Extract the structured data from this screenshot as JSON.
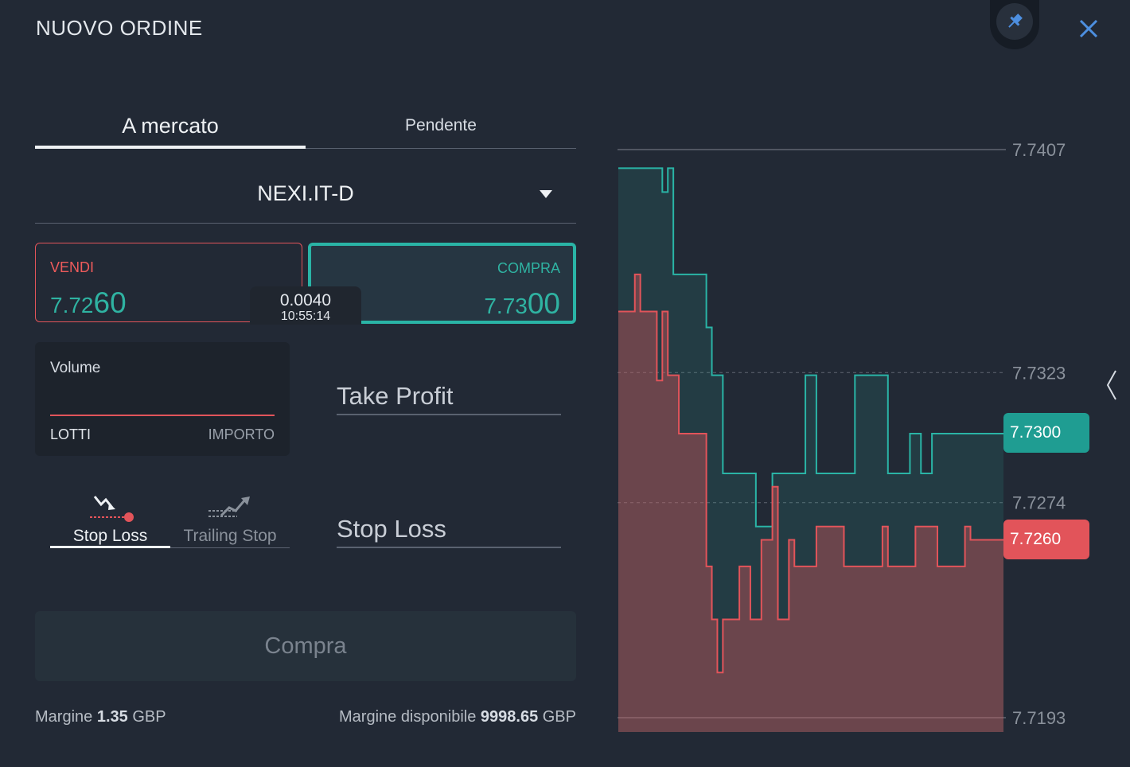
{
  "header": {
    "title": "NUOVO ORDINE",
    "pin_icon": "pin-icon",
    "close_icon": "close-icon"
  },
  "tabs": {
    "market": "A mercato",
    "pending": "Pendente"
  },
  "symbol": {
    "name": "NEXI.IT-D"
  },
  "sell": {
    "label": "VENDI",
    "price_small": "7.72",
    "price_big": "60"
  },
  "buy": {
    "label": "COMPRA",
    "price_small": "7.73",
    "price_big": "00"
  },
  "spread": {
    "value": "0.0040",
    "time": "10:55:14"
  },
  "volume": {
    "label": "Volume",
    "lotti": "LOTTI",
    "importo": "IMPORTO"
  },
  "take_profit": {
    "label": "Take Profit"
  },
  "stop_loss": {
    "label": "Stop Loss"
  },
  "stop_tabs": {
    "stop_loss": "Stop Loss",
    "trailing_stop": "Trailing Stop"
  },
  "submit": {
    "label": "Compra"
  },
  "footer": {
    "margin_label": "Margine",
    "margin_value": "1.35",
    "margin_currency": "GBP",
    "available_label": "Margine disponibile",
    "available_value": "9998.65",
    "available_currency": "GBP"
  },
  "colors": {
    "buy": "#2ab4a6",
    "sell": "#e2545a",
    "background": "#222935"
  },
  "chart_data": {
    "type": "line",
    "y_ticks": [
      "7.7407",
      "7.7323",
      "7.7274",
      "7.7193"
    ],
    "ylim": [
      7.7193,
      7.7407
    ],
    "current_buy": "7.7300",
    "current_sell": "7.7260",
    "series": [
      {
        "color": "#2ab4a6",
        "x": [
          0,
          7,
          8,
          9,
          10,
          11,
          12,
          15,
          16,
          17,
          18,
          19,
          20,
          24,
          25,
          27,
          28,
          33,
          34,
          34.5,
          35,
          36,
          38,
          40,
          42,
          43,
          49,
          50,
          53,
          54,
          55,
          57,
          58,
          59,
          60,
          67,
          68,
          70
        ],
        "values": [
          7.74,
          7.74,
          7.7391,
          7.74,
          7.736,
          7.736,
          7.736,
          7.736,
          7.734,
          7.7322,
          7.7322,
          7.7285,
          7.7285,
          7.7285,
          7.7265,
          7.7265,
          7.7285,
          7.7285,
          7.7322,
          7.7322,
          7.7322,
          7.7285,
          7.7285,
          7.7285,
          7.7285,
          7.7322,
          7.7285,
          7.7285,
          7.73,
          7.73,
          7.7285,
          7.73,
          7.73,
          7.73,
          7.73,
          7.73,
          7.73,
          7.73
        ]
      },
      {
        "color": "#e2545a",
        "x": [
          0,
          1,
          3,
          4,
          5,
          6,
          7,
          8,
          9,
          10,
          11,
          12,
          13,
          14,
          15,
          16,
          17,
          18,
          19,
          20,
          22,
          23,
          24,
          25,
          26,
          27,
          28,
          29,
          30,
          31,
          32,
          35,
          36,
          41,
          42,
          48,
          49,
          53,
          54,
          58,
          59,
          63,
          64,
          70
        ],
        "values": [
          7.7346,
          7.7346,
          7.736,
          7.7346,
          7.7346,
          7.7346,
          7.732,
          7.7346,
          7.7322,
          7.7322,
          7.73,
          7.73,
          7.73,
          7.73,
          7.73,
          7.725,
          7.723,
          7.721,
          7.723,
          7.723,
          7.725,
          7.725,
          7.723,
          7.723,
          7.726,
          7.726,
          7.728,
          7.723,
          7.723,
          7.726,
          7.725,
          7.725,
          7.7265,
          7.725,
          7.725,
          7.7265,
          7.725,
          7.725,
          7.7265,
          7.725,
          7.725,
          7.7265,
          7.726,
          7.726
        ]
      }
    ]
  }
}
